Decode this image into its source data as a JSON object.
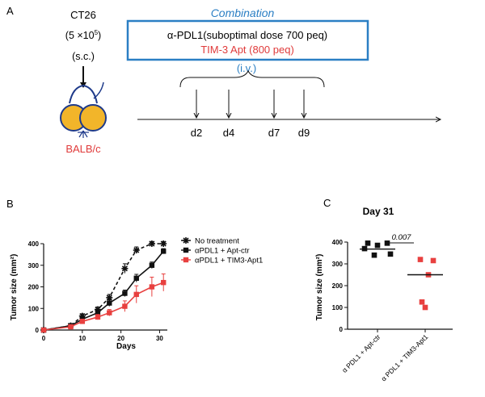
{
  "panel_a": {
    "label": "A",
    "cell_line": "CT26",
    "cell_dose": "(5 ×10",
    "cell_dose_exp": "5",
    "cell_dose_close": ")",
    "route_sc": "(s.c.)",
    "mouse_strain": "BALB/c",
    "combination_title": "Combination",
    "drug1": "α-PDL1(suboptimal dose 700 peq)",
    "drug2": "TIM-3 Apt (800 peq)",
    "route_iv": "(i.v.)",
    "days": [
      "d2",
      "d4",
      "d7",
      "d9"
    ],
    "colors": {
      "box": "#2b7fc4",
      "title": "#2b7fc4",
      "drug2": "#e03b3b",
      "mouse_body": "#f2b52a",
      "strain": "#e03b3b"
    }
  },
  "panel_b": {
    "label": "B"
  },
  "panel_c": {
    "label": "C"
  },
  "chart_data": [
    {
      "type": "line",
      "panel": "B",
      "title": "",
      "xlabel": "Days",
      "ylabel": "Tumor size (mm²)",
      "xlim": [
        0,
        32
      ],
      "ylim": [
        0,
        400
      ],
      "xticks": [
        "0",
        "10",
        "20",
        "30"
      ],
      "yticks": [
        "0",
        "100",
        "200",
        "300",
        "400"
      ],
      "legend_position": "top-right",
      "series": [
        {
          "name": "No treatment",
          "marker": "asterisk",
          "line": "dashed",
          "color": "#111111",
          "x": [
            0,
            7,
            10,
            14,
            17,
            21,
            24,
            28,
            31
          ],
          "y": [
            0,
            20,
            65,
            95,
            150,
            285,
            370,
            400,
            400
          ],
          "err": [
            0,
            5,
            10,
            12,
            15,
            22,
            15,
            12,
            10
          ]
        },
        {
          "name": "αPDL1 + Apt-ctr",
          "marker": "square",
          "line": "solid",
          "color": "#111111",
          "x": [
            0,
            7,
            10,
            14,
            17,
            21,
            24,
            28,
            31
          ],
          "y": [
            0,
            20,
            50,
            80,
            125,
            170,
            240,
            300,
            365
          ],
          "err": [
            0,
            5,
            8,
            10,
            15,
            15,
            18,
            15,
            12
          ]
        },
        {
          "name": "αPDL1 + TIM3-Apt1",
          "marker": "square",
          "line": "solid",
          "color": "#e8403f",
          "x": [
            0,
            7,
            10,
            14,
            17,
            21,
            24,
            28,
            31
          ],
          "y": [
            0,
            15,
            40,
            60,
            80,
            110,
            165,
            200,
            220
          ],
          "err": [
            0,
            5,
            10,
            12,
            15,
            25,
            40,
            45,
            40
          ]
        }
      ]
    },
    {
      "type": "scatter",
      "panel": "C",
      "title": "Day 31",
      "xlabel": "",
      "ylabel": "Tumor size (mm²)",
      "ylim": [
        0,
        400
      ],
      "yticks": [
        "0",
        "100",
        "200",
        "300",
        "400"
      ],
      "categories": [
        "α PDL1 + Apt-ctr",
        "α PDL1 + TIM3-Apt1"
      ],
      "groups": [
        {
          "name": "α PDL1 + Apt-ctr",
          "color": "#111111",
          "median": 368,
          "points": [
            395,
            395,
            385,
            370,
            345,
            340
          ]
        },
        {
          "name": "α PDL1 + TIM3-Apt1",
          "color": "#e8403f",
          "median": 250,
          "points": [
            320,
            315,
            250,
            125,
            100
          ]
        }
      ],
      "p_value": "0.007"
    }
  ]
}
